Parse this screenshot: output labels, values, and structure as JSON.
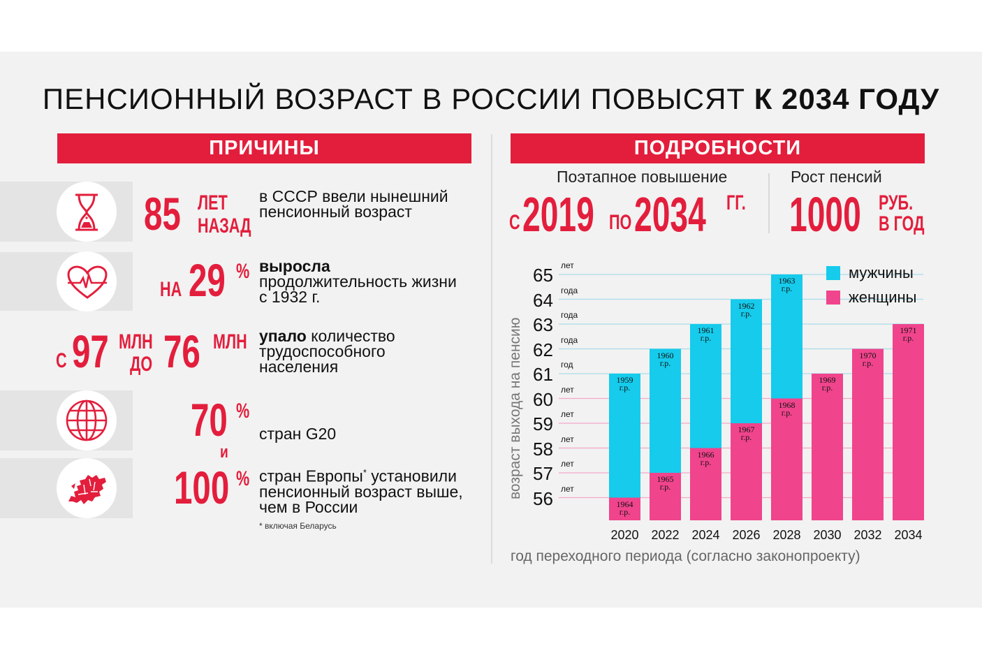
{
  "title_main": "ПЕНСИОННЫЙ ВОЗРАСТ В РОССИИ ПОВЫСЯТ ",
  "title_bold": "К 2034 ГОДУ",
  "left_header": "ПРИЧИНЫ",
  "right_header": "ПОДРОБНОСТИ",
  "colors": {
    "red": "#e31e3c",
    "men": "#16cbeb",
    "women": "#f0448c"
  },
  "reasons": [
    {
      "icon": "hourglass-icon",
      "num": "85",
      "unit_top": "ЛЕТ",
      "unit_bottom": "НАЗАД",
      "text": "в СССР ввели нынешний пенсионный возраст"
    },
    {
      "icon": "heart-pulse-icon",
      "prefix": "НА",
      "num": "29",
      "unit": "%",
      "bold": "выросла",
      "text": "продолжительность жизни с 1932 г."
    },
    {
      "prefix": "С",
      "num": "97",
      "unit_top": "МЛН",
      "unit_bottom": "ДО",
      "num2": "76",
      "unit2": "МЛН",
      "bold": "упало",
      "text": "количество трудоспособного населения"
    },
    {
      "icon": "globe-icon",
      "num": "70",
      "unit": "%",
      "text": "стран G20"
    },
    {
      "icon": "europe-map-icon",
      "connector": "и",
      "num": "100",
      "unit": "%",
      "text_a": "стран Европы",
      "star": "*",
      "text_b": " установили пенсионный возраст выше, чем в России"
    }
  ],
  "footnote": "* включая Беларусь",
  "details": {
    "stage_label": "Поэтапное повышение",
    "stage_from_prefix": "С",
    "stage_from": "2019",
    "stage_to_prefix": "ПО",
    "stage_to": "2034",
    "stage_suffix": "ГГ.",
    "pension_label": "Рост пенсий",
    "pension_value": "1000",
    "pension_unit_top": "РУБ.",
    "pension_unit_bottom": "В ГОД"
  },
  "chart_data": {
    "type": "bar",
    "xlabel": "год переходного периода (согласно законопроекту)",
    "ylabel": "возраст выхода на пенсию",
    "ylim": [
      55.4,
      65
    ],
    "y_ticks": [
      {
        "value": 65,
        "suffix": "лет"
      },
      {
        "value": 64,
        "suffix": "года"
      },
      {
        "value": 63,
        "suffix": "года"
      },
      {
        "value": 62,
        "suffix": "года"
      },
      {
        "value": 61,
        "suffix": "год"
      },
      {
        "value": 60,
        "suffix": "лет"
      },
      {
        "value": 59,
        "suffix": "лет"
      },
      {
        "value": 58,
        "suffix": "лет"
      },
      {
        "value": 57,
        "suffix": "лет"
      },
      {
        "value": 56,
        "suffix": "лет"
      }
    ],
    "categories": [
      "2020",
      "2022",
      "2024",
      "2026",
      "2028",
      "2030",
      "2032",
      "2034"
    ],
    "series": [
      {
        "name": "мужчины",
        "values": [
          61,
          62,
          63,
          64,
          65,
          null,
          null,
          null
        ],
        "labels": [
          "1959",
          "1960",
          "1961",
          "1962",
          "1963",
          "",
          "",
          ""
        ]
      },
      {
        "name": "женщины",
        "values": [
          56,
          57,
          58,
          59,
          60,
          61,
          62,
          63
        ],
        "labels": [
          "1964",
          "1965",
          "1966",
          "1967",
          "1968",
          "1969",
          "1970",
          "1971"
        ]
      }
    ],
    "year_suffix": "г.р.",
    "legend": "top-right"
  }
}
